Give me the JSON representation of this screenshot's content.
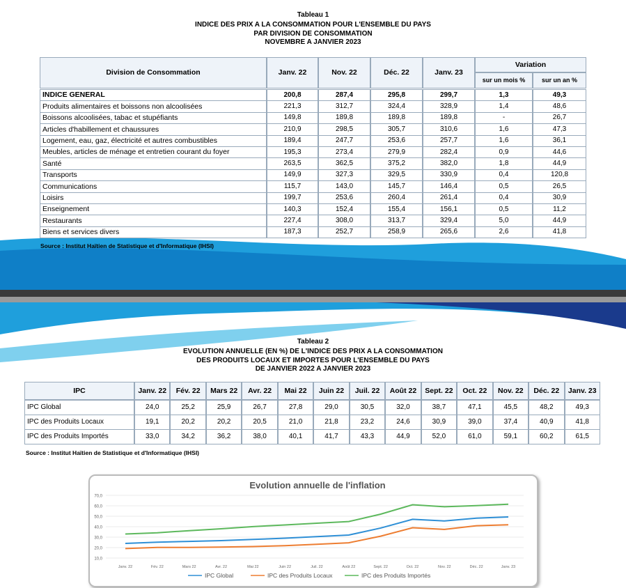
{
  "table1": {
    "label": "Tableau 1",
    "title": [
      "INDICE DES PRIX A LA CONSOMMATION POUR L'ENSEMBLE DU PAYS",
      "PAR DIVISION DE CONSOMMATION",
      "NOVEMBRE A JANVIER 2023"
    ],
    "headers": [
      "Division de Consommation",
      "Janv. 22",
      "Nov. 22",
      "Déc. 22",
      "Janv. 23"
    ],
    "variation": "Variation",
    "subheaders": [
      "sur un mois %",
      "sur un an %"
    ],
    "rows": [
      [
        "INDICE GENERAL",
        "200,8",
        "287,4",
        "295,8",
        "299,7",
        "1,3",
        "49,3"
      ],
      [
        "Produits alimentaires et boissons non alcoolisées",
        "221,3",
        "312,7",
        "324,4",
        "328,9",
        "1,4",
        "48,6"
      ],
      [
        "Boissons alcoolisées, tabac et stupéfiants",
        "149,8",
        "189,8",
        "189,8",
        "189,8",
        "-",
        "26,7"
      ],
      [
        "Articles d'habillement et chaussures",
        "210,9",
        "298,5",
        "305,7",
        "310,6",
        "1,6",
        "47,3"
      ],
      [
        "Logement, eau, gaz, électricité et autres combustibles",
        "189,4",
        "247,7",
        "253,6",
        "257,7",
        "1,6",
        "36,1"
      ],
      [
        "Meubles, articles de ménage et entretien courant du foyer",
        "195,3",
        "273,4",
        "279,9",
        "282,4",
        "0,9",
        "44,6"
      ],
      [
        "Santé",
        "263,5",
        "362,5",
        "375,2",
        "382,0",
        "1,8",
        "44,9"
      ],
      [
        "Transports",
        "149,9",
        "327,3",
        "329,5",
        "330,9",
        "0,4",
        "120,8"
      ],
      [
        "Communications",
        "115,7",
        "143,0",
        "145,7",
        "146,4",
        "0,5",
        "26,5"
      ],
      [
        "Loisirs",
        "199,7",
        "253,6",
        "260,4",
        "261,4",
        "0,4",
        "30,9"
      ],
      [
        "Enseignement",
        "140,3",
        "152,4",
        "155,4",
        "156,1",
        "0,5",
        "11,2"
      ],
      [
        "Restaurants",
        "227,4",
        "308,0",
        "313,7",
        "329,4",
        "5,0",
        "44,9"
      ],
      [
        "Biens et services divers",
        "187,3",
        "252,7",
        "258,9",
        "265,6",
        "2,6",
        "41,8"
      ]
    ],
    "source": "Source  : Institut Haïtien de Statistique et d'Informatique (IHSI)"
  },
  "table2": {
    "label": "Tableau 2",
    "title": [
      "EVOLUTION ANNUELLE (EN %) DE L'INDICE DES PRIX A LA CONSOMMATION",
      "DES PRODUITS LOCAUX ET IMPORTES POUR L'ENSEMBLE DU PAYS",
      "DE JANVIER 2022 A JANVIER 2023"
    ],
    "headers": [
      "IPC",
      "Janv. 22",
      "Fév. 22",
      "Mars 22",
      "Avr. 22",
      "Mai 22",
      "Juin 22",
      "Juil. 22",
      "Août 22",
      "Sept. 22",
      "Oct. 22",
      "Nov. 22",
      "Déc. 22",
      "Janv. 23"
    ],
    "rows": [
      [
        "IPC Global",
        "24,0",
        "25,2",
        "25,9",
        "26,7",
        "27,8",
        "29,0",
        "30,5",
        "32,0",
        "38,7",
        "47,1",
        "45,5",
        "48,2",
        "49,3"
      ],
      [
        "IPC des Produits Locaux",
        "19,1",
        "20,2",
        "20,2",
        "20,5",
        "21,0",
        "21,8",
        "23,2",
        "24,6",
        "30,9",
        "39,0",
        "37,4",
        "40,9",
        "41,8"
      ],
      [
        "IPC des Produits Importés",
        "33,0",
        "34,2",
        "36,2",
        "38,0",
        "40,1",
        "41,7",
        "43,3",
        "44,9",
        "52,0",
        "61,0",
        "59,1",
        "60,2",
        "61,5"
      ]
    ],
    "source": "Source  : Institut Haïtien de Statistique et d'Informatique (IHSI)"
  },
  "chart_data": {
    "type": "line",
    "title": "Evolution annuelle de l'inflation",
    "categories": [
      "Janv. 22",
      "Fév. 22",
      "Mars 22",
      "Avr. 22",
      "Mai 22",
      "Juin 22",
      "Juil. 22",
      "Août 22",
      "Sept. 22",
      "Oct. 22",
      "Nov. 22",
      "Déc. 22",
      "Janv. 23"
    ],
    "series": [
      {
        "name": "IPC Global",
        "color": "#2e8fd6",
        "values": [
          24.0,
          25.2,
          25.9,
          26.7,
          27.8,
          29.0,
          30.5,
          32.0,
          38.7,
          47.1,
          45.5,
          48.2,
          49.3
        ]
      },
      {
        "name": "IPC des Produits Locaux",
        "color": "#ed7d31",
        "values": [
          19.1,
          20.2,
          20.2,
          20.5,
          21.0,
          21.8,
          23.2,
          24.6,
          30.9,
          39.0,
          37.4,
          40.9,
          41.8
        ]
      },
      {
        "name": "IPC des Produits Importés",
        "color": "#5cb85c",
        "values": [
          33.0,
          34.2,
          36.2,
          38.0,
          40.1,
          41.7,
          43.3,
          44.9,
          52.0,
          61.0,
          59.1,
          60.2,
          61.5
        ]
      }
    ],
    "ylim": [
      10,
      70
    ],
    "yticks": [
      {
        "value": 10,
        "label": "10,0"
      },
      {
        "value": 20,
        "label": "20,0"
      },
      {
        "value": 30,
        "label": "30,0"
      },
      {
        "value": 40,
        "label": "40,0"
      },
      {
        "value": 50,
        "label": "50,0"
      },
      {
        "value": 60,
        "label": "60,0"
      },
      {
        "value": 70,
        "label": "70,0"
      }
    ],
    "grid": true,
    "legend": "bottom"
  }
}
